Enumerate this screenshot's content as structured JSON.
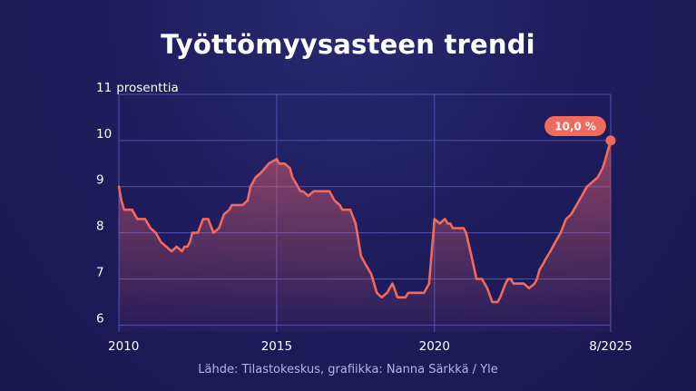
{
  "chart_data": {
    "type": "area",
    "title": "Työttömyysasteen trendi",
    "ylabel": "prosenttia",
    "source": "Lähde: Tilastokeskus, grafiikka: Nanna Särkkä / Yle",
    "y_ticks": [
      {
        "value": 11,
        "label": "11"
      },
      {
        "value": 10,
        "label": "10"
      },
      {
        "value": 9,
        "label": "9"
      },
      {
        "value": 8,
        "label": "8"
      },
      {
        "value": 7,
        "label": "7"
      },
      {
        "value": 6,
        "label": "6"
      }
    ],
    "x_ticks": [
      {
        "value": 2010.0,
        "label": "2010"
      },
      {
        "value": 2015.0,
        "label": "2015"
      },
      {
        "value": 2020.0,
        "label": "2020"
      },
      {
        "value": 2025.5833,
        "label": "8/2025"
      }
    ],
    "xlim": [
      2010.0,
      2025.5833
    ],
    "ylim": [
      5.85,
      11
    ],
    "grid": true,
    "colors": {
      "line": "#f06a5d",
      "grid": "#5451b0",
      "badge": "#f06a5d"
    },
    "last_value_label": "10,0 %",
    "series": [
      {
        "x": [
          2010.0,
          2010.08,
          2010.17,
          2010.25,
          2010.42,
          2010.58,
          2010.75,
          2010.83,
          2011.0,
          2011.17,
          2011.33,
          2011.5,
          2011.67,
          2011.83,
          2012.0,
          2012.08,
          2012.17,
          2012.25,
          2012.33,
          2012.5,
          2012.67,
          2012.83,
          2013.0,
          2013.17,
          2013.33,
          2013.5,
          2013.58,
          2013.67,
          2013.75,
          2013.92,
          2014.08,
          2014.17,
          2014.33,
          2014.5,
          2014.75,
          2015.0,
          2015.08,
          2015.17,
          2015.25,
          2015.42,
          2015.5,
          2015.67,
          2015.75,
          2015.83,
          2016.0,
          2016.17,
          2016.33,
          2016.5,
          2016.67,
          2016.83,
          2017.0,
          2017.08,
          2017.17,
          2017.33,
          2017.5,
          2017.67,
          2017.83,
          2018.0,
          2018.17,
          2018.33,
          2018.5,
          2018.58,
          2018.67,
          2018.83,
          2019.0,
          2019.08,
          2019.17,
          2019.25,
          2019.33,
          2019.42,
          2019.5,
          2019.67,
          2019.83,
          2020.0,
          2020.17,
          2020.33,
          2020.42,
          2020.5,
          2020.58,
          2020.67,
          2020.75,
          2020.83,
          2020.92,
          2021.0,
          2021.17,
          2021.33,
          2021.5,
          2021.67,
          2021.83,
          2022.0,
          2022.08,
          2022.25,
          2022.33,
          2022.42,
          2022.5,
          2022.67,
          2022.83,
          2023.0,
          2023.17,
          2023.25,
          2023.33,
          2023.42,
          2023.5,
          2023.67,
          2023.83,
          2024.0,
          2024.17,
          2024.33,
          2024.5,
          2024.67,
          2024.83,
          2025.0,
          2025.17,
          2025.33,
          2025.42,
          2025.5,
          2025.5833
        ],
        "values": [
          9.0,
          8.7,
          8.5,
          8.5,
          8.5,
          8.3,
          8.3,
          8.3,
          8.1,
          8.0,
          7.8,
          7.7,
          7.6,
          7.7,
          7.6,
          7.7,
          7.7,
          7.8,
          8.0,
          8.0,
          8.3,
          8.3,
          8.0,
          8.1,
          8.4,
          8.5,
          8.6,
          8.6,
          8.6,
          8.6,
          8.7,
          9.0,
          9.2,
          9.3,
          9.5,
          9.6,
          9.5,
          9.5,
          9.5,
          9.4,
          9.2,
          9.0,
          8.9,
          8.9,
          8.8,
          8.9,
          8.9,
          8.9,
          8.9,
          8.7,
          8.6,
          8.5,
          8.5,
          8.5,
          8.2,
          7.5,
          7.3,
          7.1,
          6.7,
          6.6,
          6.7,
          6.8,
          6.9,
          6.6,
          6.6,
          6.6,
          6.7,
          6.7,
          6.7,
          6.7,
          6.7,
          6.7,
          6.9,
          8.3,
          8.2,
          8.3,
          8.2,
          8.2,
          8.1,
          8.1,
          8.1,
          8.1,
          8.1,
          8.0,
          7.5,
          7.0,
          7.0,
          6.8,
          6.5,
          6.5,
          6.6,
          6.9,
          7.0,
          7.0,
          6.9,
          6.9,
          6.9,
          6.8,
          6.9,
          7.0,
          7.2,
          7.3,
          7.4,
          7.6,
          7.8,
          8.0,
          8.3,
          8.4,
          8.6,
          8.8,
          9.0,
          9.1,
          9.2,
          9.4,
          9.6,
          9.8,
          10.0
        ]
      }
    ]
  }
}
